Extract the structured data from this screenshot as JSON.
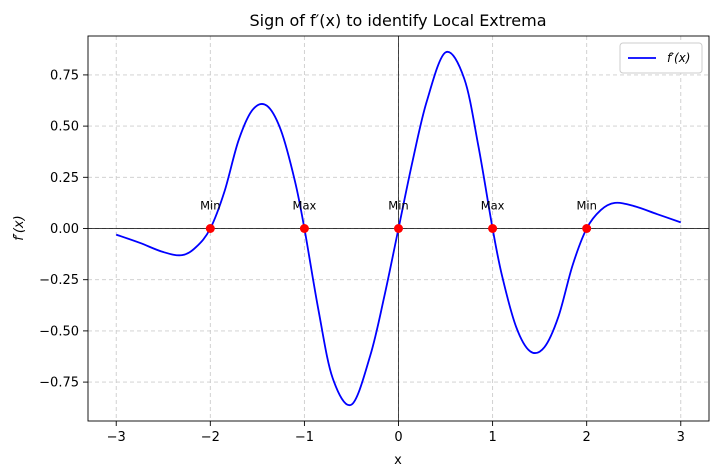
{
  "chart_data": {
    "type": "line",
    "title": "Sign of f′(x) to identify Local Extrema",
    "xlabel": "x",
    "ylabel": "f′(x)",
    "xlim": [
      -3.3,
      3.3
    ],
    "ylim": [
      -0.94,
      0.94
    ],
    "x_ticks": [
      -3,
      -2,
      -1,
      0,
      1,
      2,
      3
    ],
    "x_tick_labels": [
      "−3",
      "−2",
      "−1",
      "0",
      "1",
      "2",
      "3"
    ],
    "y_ticks": [
      -0.75,
      -0.5,
      -0.25,
      0.0,
      0.25,
      0.5,
      0.75
    ],
    "y_tick_labels": [
      "−0.75",
      "−0.50",
      "−0.25",
      "0.00",
      "0.25",
      "0.50",
      "0.75"
    ],
    "grid": true,
    "legend": {
      "placement": "top-right",
      "entries": [
        "f′(x)"
      ]
    },
    "series": [
      {
        "name": "f′(x)",
        "color": "#0000ff",
        "x": [
          -3.0,
          -2.75,
          -2.5,
          -2.3,
          -2.15,
          -2.0,
          -1.85,
          -1.7,
          -1.55,
          -1.4,
          -1.25,
          -1.1,
          -1.0,
          -0.85,
          -0.7,
          -0.5,
          -0.3,
          -0.15,
          0.0,
          0.15,
          0.3,
          0.5,
          0.7,
          0.85,
          1.0,
          1.1,
          1.25,
          1.4,
          1.55,
          1.7,
          1.85,
          2.0,
          2.15,
          2.3,
          2.5,
          2.75,
          3.0
        ],
        "y": [
          -0.03,
          -0.07,
          -0.115,
          -0.13,
          -0.09,
          0.0,
          0.18,
          0.43,
          0.58,
          0.6,
          0.48,
          0.23,
          0.0,
          -0.4,
          -0.73,
          -0.86,
          -0.62,
          -0.33,
          0.0,
          0.33,
          0.62,
          0.86,
          0.73,
          0.4,
          0.0,
          -0.23,
          -0.48,
          -0.6,
          -0.58,
          -0.43,
          -0.18,
          0.0,
          0.09,
          0.125,
          0.11,
          0.07,
          0.03
        ]
      }
    ],
    "critical_points": {
      "color": "#ff0000",
      "points": [
        {
          "x": -2,
          "y": 0,
          "label": "Min"
        },
        {
          "x": -1,
          "y": 0,
          "label": "Max"
        },
        {
          "x": 0,
          "y": 0,
          "label": "Min"
        },
        {
          "x": 1,
          "y": 0,
          "label": "Max"
        },
        {
          "x": 2,
          "y": 0,
          "label": "Min"
        }
      ]
    }
  }
}
